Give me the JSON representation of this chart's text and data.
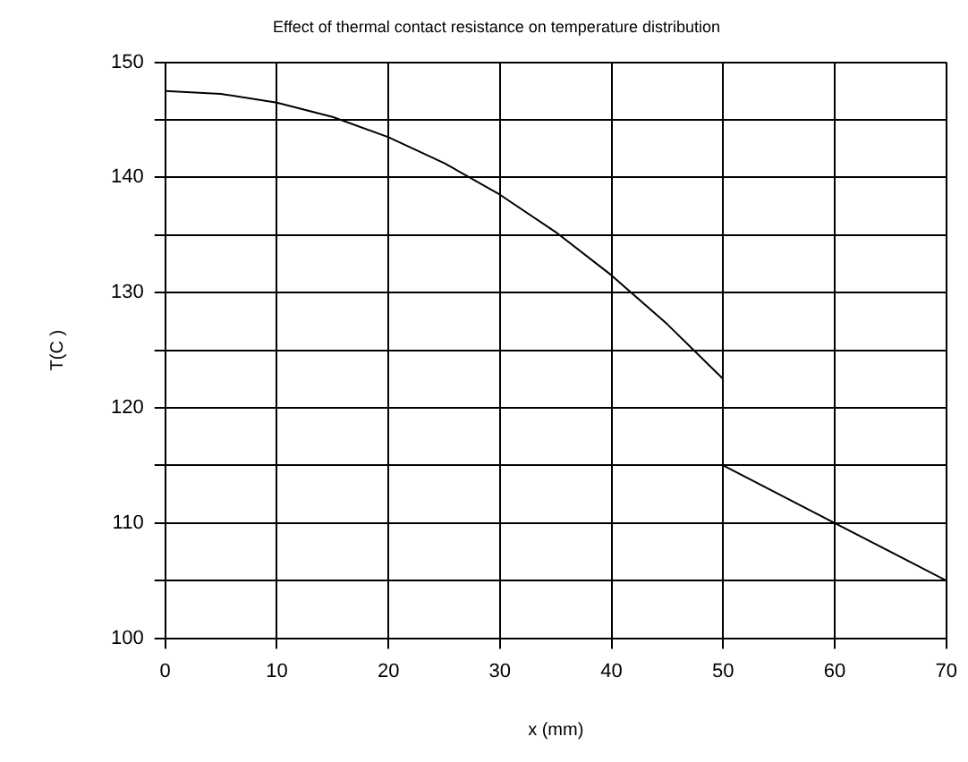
{
  "chart_data": {
    "type": "line",
    "title": "Effect of thermal contact resistance on temperature distribution",
    "xlabel": "x (mm)",
    "ylabel": "T(C )",
    "series": [
      {
        "color": "#000000",
        "x": [
          0,
          5,
          10,
          15,
          20,
          25,
          30,
          35,
          40,
          45,
          50
        ],
        "values": [
          147.5,
          147.25,
          146.5,
          145.25,
          143.5,
          141.25,
          138.5,
          135.25,
          131.5,
          127.25,
          122.5
        ]
      },
      {
        "color": "#000000",
        "x": [
          50,
          60,
          70
        ],
        "values": [
          115,
          110,
          105
        ]
      }
    ],
    "xlim": [
      0,
      70
    ],
    "xticks": [
      0,
      10,
      20,
      30,
      40,
      50,
      60,
      70
    ],
    "ylim": [
      100,
      150
    ],
    "yticks": [
      100,
      {
        "value": 105,
        "label": null
      },
      110,
      {
        "value": 115,
        "label": null
      },
      120,
      {
        "value": 125,
        "label": null
      },
      130,
      {
        "value": 135,
        "label": null
      },
      140,
      {
        "value": 145,
        "label": null
      },
      150
    ],
    "grid": true,
    "legend": false,
    "marker": "none",
    "line_style": "solid"
  }
}
